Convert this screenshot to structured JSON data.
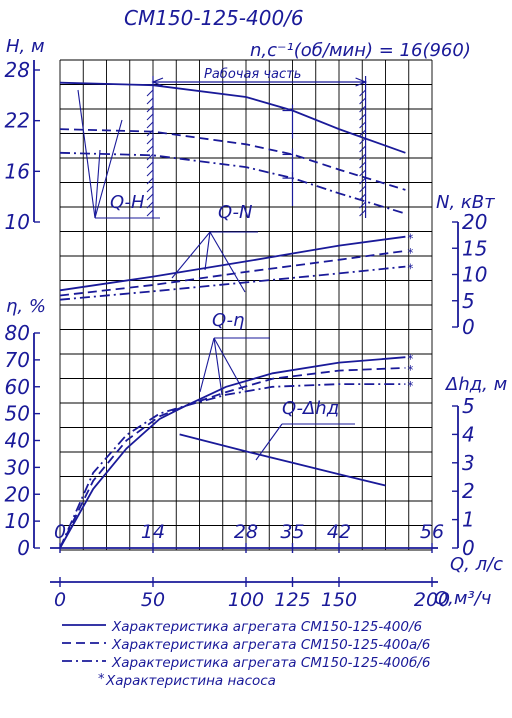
{
  "chart_data": {
    "type": "line",
    "title": "СМ150-125-400/6",
    "speed_label": "n,с⁻¹(об/мин) = 16(960)",
    "working_zone_label": "Рабочая часть",
    "colors": {
      "ink": "#1a1a99",
      "grid": "#000000"
    },
    "x_axes": {
      "q_ls": {
        "label": "Q, л/с",
        "ticks": [
          "0",
          "14",
          "28",
          "35",
          "42",
          "56"
        ],
        "tick_values": [
          0,
          14,
          28,
          35,
          42,
          56
        ],
        "range": [
          0,
          56
        ]
      },
      "q_m3h": {
        "label": "Q,м³/ч",
        "ticks": [
          "0",
          "50",
          "100",
          "125",
          "150",
          "200"
        ],
        "tick_values": [
          0,
          50,
          100,
          125,
          150,
          200
        ],
        "range": [
          0,
          200
        ]
      }
    },
    "y_axes": {
      "head": {
        "label": "H, м",
        "ticks": [
          "28",
          "22",
          "16",
          "10"
        ],
        "range": [
          10,
          28
        ]
      },
      "power": {
        "label": "N, кВт",
        "ticks": [
          "20",
          "15",
          "10",
          "5",
          "0"
        ],
        "range": [
          0,
          20
        ]
      },
      "efficiency": {
        "label": "η, %",
        "ticks": [
          "80",
          "70",
          "60",
          "50",
          "40",
          "30",
          "20",
          "10",
          "0"
        ],
        "range": [
          0,
          80
        ]
      },
      "npsh": {
        "label": "Δhд, м",
        "ticks": [
          "5",
          "4",
          "3",
          "2",
          "1",
          "0"
        ],
        "range": [
          0,
          5
        ]
      }
    },
    "curve_labels": [
      "Q-H",
      "Q-N",
      "Q-η",
      "Q-Δhд"
    ],
    "working_zone_q_ls": [
      14,
      46
    ],
    "series": [
      {
        "name": "Характеристика агрегата СМ150-125-400/6",
        "style": "solid",
        "Q_H": [
          [
            0,
            26.5
          ],
          [
            14,
            26.2
          ],
          [
            28,
            24.8
          ],
          [
            35,
            23.2
          ],
          [
            42,
            21.0
          ],
          [
            52,
            18.2
          ]
        ],
        "Q_N": [
          [
            0,
            7.0
          ],
          [
            14,
            9.6
          ],
          [
            28,
            12.5
          ],
          [
            42,
            15.5
          ],
          [
            52,
            17.2
          ]
        ],
        "Q_eta": [
          [
            0,
            0
          ],
          [
            5,
            22
          ],
          [
            10,
            37
          ],
          [
            15,
            48
          ],
          [
            19,
            53
          ],
          [
            25,
            60
          ],
          [
            32,
            65
          ],
          [
            42,
            69
          ],
          [
            52,
            71
          ]
        ]
      },
      {
        "name": "Характеристика агрегата СМ150-125-400а/6",
        "style": "dashed",
        "Q_H": [
          [
            0,
            21.0
          ],
          [
            14,
            20.7
          ],
          [
            28,
            19.2
          ],
          [
            35,
            18.0
          ],
          [
            42,
            16.2
          ],
          [
            52,
            13.8
          ]
        ],
        "Q_N": [
          [
            0,
            6.0
          ],
          [
            14,
            8.0
          ],
          [
            28,
            10.5
          ],
          [
            42,
            12.8
          ],
          [
            52,
            14.5
          ]
        ],
        "Q_eta": [
          [
            0,
            0
          ],
          [
            5,
            25
          ],
          [
            10,
            40
          ],
          [
            15,
            49
          ],
          [
            19,
            53
          ],
          [
            25,
            58
          ],
          [
            32,
            63
          ],
          [
            42,
            66
          ],
          [
            52,
            67
          ]
        ]
      },
      {
        "name": "Характеристика агрегата СМ150-125-400б/6",
        "style": "dashdot",
        "Q_H": [
          [
            0,
            18.2
          ],
          [
            14,
            17.9
          ],
          [
            28,
            16.5
          ],
          [
            35,
            15.2
          ],
          [
            42,
            13.4
          ],
          [
            52,
            11.0
          ]
        ],
        "Q_N": [
          [
            0,
            5.2
          ],
          [
            14,
            6.8
          ],
          [
            28,
            8.5
          ],
          [
            42,
            10.2
          ],
          [
            52,
            11.5
          ]
        ],
        "Q_eta": [
          [
            0,
            0
          ],
          [
            5,
            28
          ],
          [
            10,
            42
          ],
          [
            15,
            50
          ],
          [
            19,
            53
          ],
          [
            25,
            57
          ],
          [
            32,
            60
          ],
          [
            42,
            61
          ],
          [
            52,
            61
          ]
        ]
      }
    ],
    "npsh_curve": [
      [
        18,
        4.0
      ],
      [
        28,
        3.4
      ],
      [
        35,
        3.0
      ],
      [
        42,
        2.6
      ],
      [
        49,
        2.2
      ]
    ],
    "legend": [
      {
        "style": "solid",
        "text": "Характеристика агрегата СМ150-125-400/6"
      },
      {
        "style": "dashed",
        "text": "Характеристика агрегата СМ150-125-400а/6"
      },
      {
        "style": "dashdot",
        "text": "Характеристика агрегата СМ150-125-400б/6"
      },
      {
        "style": "asterisk",
        "text": "Характеристина насоса"
      }
    ]
  }
}
